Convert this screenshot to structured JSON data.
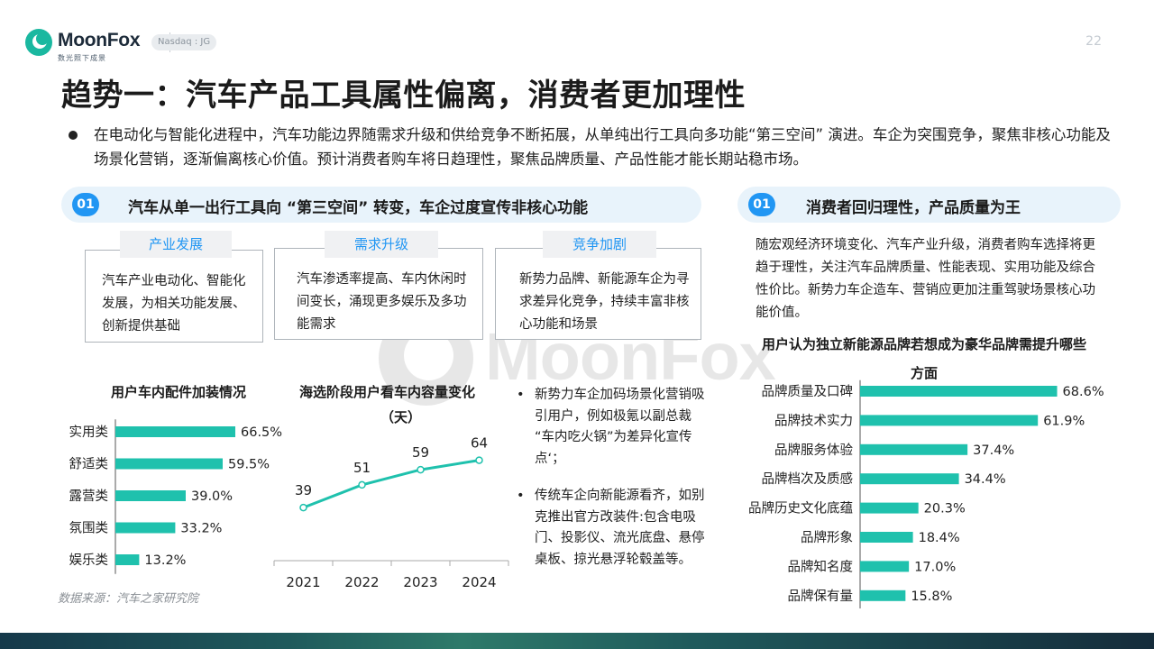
{
  "brand": {
    "name": "MoonFox",
    "tagline": "数光照下成景",
    "ticker": "Nasdaq : JG",
    "page_number": "22",
    "teal": "#1fc1ad",
    "blue": "#2196f3"
  },
  "title": "趋势一：汽车产品工具属性偏离，消费者更加理性",
  "intro": "在电动化与智能化进程中，汽车功能边界随需求升级和供给竞争不断拓展，从单纯出行工具向多功能“第三空间” 演进。车企为突围竞争，聚焦非核心功能及场景化营销，逐渐偏离核心价值。预计消费者购车将日趋理性，聚焦品牌质量、产品性能才能长期站稳市场。",
  "left_section": {
    "num": "01",
    "title": "汽车从单一出行工具向 “第三空间” 转变，车企过度宣传非核心功能",
    "boxes": [
      {
        "tag": "产业发展",
        "text": "汽车产业电动化、智能化发展，为相关功能发展、创新提供基础"
      },
      {
        "tag": "需求升级",
        "text": "汽车渗透率提高、车内休闲时间变长，涌现更多娱乐及多功能需求"
      },
      {
        "tag": "竞争加剧",
        "text": "新势力品牌、新能源车企为寻求差异化竞争，持续丰富非核心功能和场景"
      }
    ],
    "bullets": [
      "新势力车企加码场景化营销吸引用户，例如极氪以副总裁 “车内吃火锅”为差异化宣传点‘；",
      "传统车企向新能源看齐，如别克推出官方改装件:包含电吸门、投影仪、流光底盘、悬停桌板、掠光悬浮轮毂盖等。"
    ],
    "source": "数据来源：汽车之家研究院"
  },
  "right_section": {
    "num": "01",
    "title": "消费者回归理性，产品质量为王",
    "text": "随宏观经济环境变化、汽车产业升级，消费者购车选择将更趋于理性，关注汽车品牌质量、性能表现、实用功能及综合性价比。新势力车企造车、营销应更加注重驾驶场景核心功能价值。"
  },
  "chart_data": [
    {
      "type": "bar",
      "orientation": "horizontal",
      "title": "用户车内配件加装情况",
      "categories": [
        "实用类",
        "舒适类",
        "露营类",
        "氛围类",
        "娱乐类"
      ],
      "values": [
        66.5,
        59.5,
        39.0,
        33.2,
        13.2
      ],
      "labels": [
        "66.5%",
        "59.5%",
        "39.0%",
        "33.2%",
        "13.2%"
      ],
      "unit": "%",
      "xlim": [
        0,
        70
      ],
      "color": "#1fc1ad",
      "grid": false
    },
    {
      "type": "line",
      "title": "海选阶段用户看车内容量变化",
      "subtitle": "（天）",
      "x": [
        "2021",
        "2022",
        "2023",
        "2024"
      ],
      "values": [
        39,
        51,
        59,
        64
      ],
      "ylim": [
        0,
        100
      ],
      "color": "#1fc1ad",
      "grid": false
    },
    {
      "type": "bar",
      "orientation": "horizontal",
      "title": "用户认为独立新能源品牌若想成为豪华品牌需提升哪些方面",
      "categories": [
        "品牌质量及口碑",
        "品牌技术实力",
        "品牌服务体验",
        "品牌档次及质感",
        "品牌历史文化底蕴",
        "品牌形象",
        "品牌知名度",
        "品牌保有量"
      ],
      "values": [
        68.6,
        61.9,
        37.4,
        34.4,
        20.3,
        18.4,
        17.0,
        15.8
      ],
      "labels": [
        "68.6%",
        "61.9%",
        "37.4%",
        "34.4%",
        "20.3%",
        "18.4%",
        "17.0%",
        "15.8%"
      ],
      "unit": "%",
      "xlim": [
        0,
        70
      ],
      "color": "#1fc1ad",
      "grid": false
    }
  ]
}
